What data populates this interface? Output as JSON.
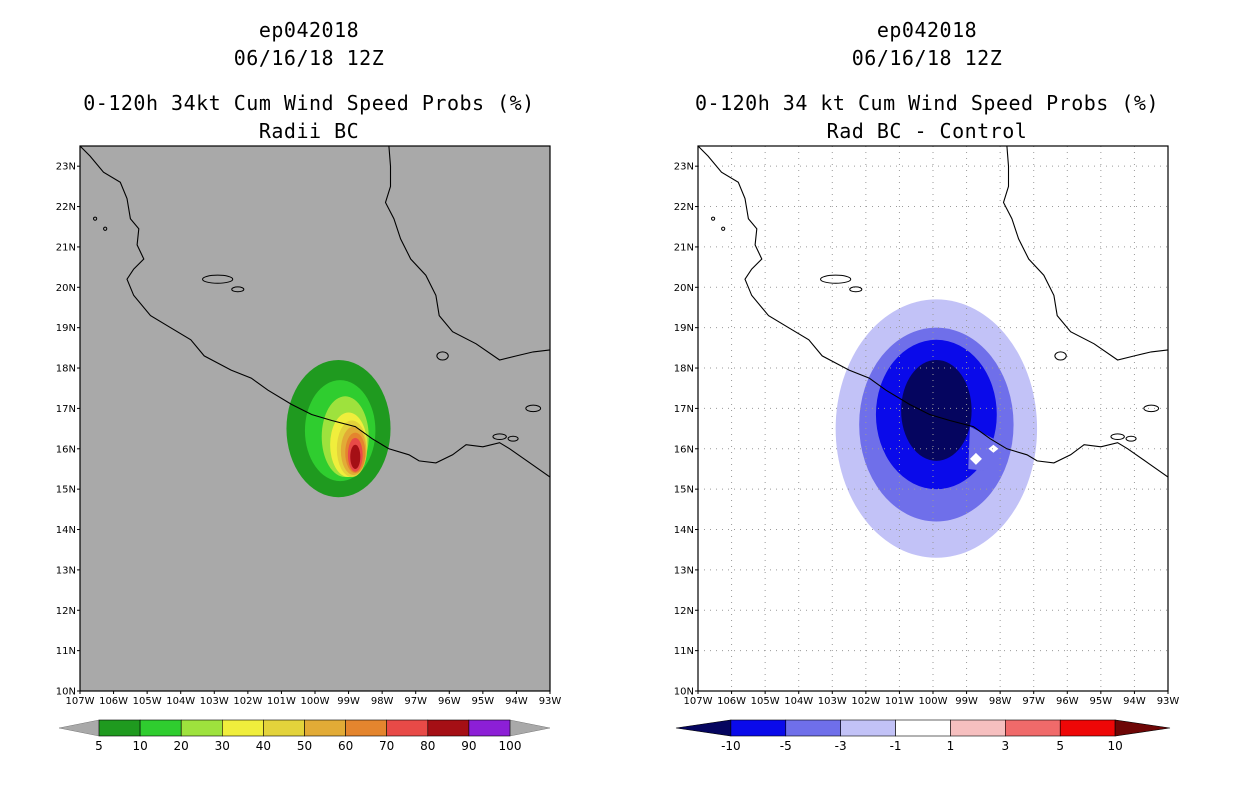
{
  "panels": [
    {
      "id": "left",
      "title_line1": "ep042018",
      "title_line2": "06/16/18 12Z",
      "title_line3": "0-120h 34kt Cum Wind Speed Probs (%)",
      "title_line4": "Radii BC",
      "background_color": "#a9a9a9",
      "gridlines": false,
      "colorbar": {
        "labels": [
          "5",
          "10",
          "20",
          "30",
          "40",
          "50",
          "60",
          "70",
          "80",
          "90",
          "100"
        ],
        "colors": [
          "#1f9a1f",
          "#2fcd2f",
          "#9ee23d",
          "#f0ee3c",
          "#e3d33b",
          "#e2ab36",
          "#e4852e",
          "#e84a47",
          "#a50f15",
          "#8c1fd6"
        ],
        "end_color": "#a9a9a9"
      }
    },
    {
      "id": "right",
      "title_line1": "ep042018",
      "title_line2": "06/16/18 12Z",
      "title_line3": "0-120h 34 kt Cum Wind Speed Probs (%)",
      "title_line4": "Rad BC - Control",
      "background_color": "#ffffff",
      "gridlines": true,
      "colorbar": {
        "labels": [
          "-10",
          "-5",
          "-3",
          "-1",
          "1",
          "3",
          "5",
          "10"
        ],
        "colors": [
          "#05055f",
          "#0a0aea",
          "#6f6fea",
          "#c2c2f7",
          "#ffffff",
          "#f6bfbf",
          "#f06a6a",
          "#ee0707",
          "#6e0606"
        ]
      }
    }
  ],
  "axes": {
    "lat_labels": [
      "10N",
      "11N",
      "12N",
      "13N",
      "14N",
      "15N",
      "16N",
      "17N",
      "18N",
      "19N",
      "20N",
      "21N",
      "22N",
      "23N"
    ],
    "lon_labels": [
      "107W",
      "106W",
      "105W",
      "104W",
      "103W",
      "102W",
      "101W",
      "100W",
      "99W",
      "98W",
      "97W",
      "96W",
      "95W",
      "94W",
      "93W"
    ],
    "lat_range": [
      10,
      23.5
    ],
    "lon_range": [
      -107,
      -93
    ]
  },
  "fields": {
    "left_probability": [
      {
        "level": 5,
        "color": "#1f9a1f",
        "center": [
          -99.3,
          16.5
        ],
        "radii_deg": [
          1.55,
          1.7
        ]
      },
      {
        "level": 10,
        "color": "#2fcd2f",
        "center": [
          -99.25,
          16.45
        ],
        "radii_deg": [
          1.05,
          1.25
        ]
      },
      {
        "level": 20,
        "color": "#9ee23d",
        "center": [
          -99.1,
          16.3
        ],
        "radii_deg": [
          0.7,
          1.0
        ]
      },
      {
        "level": 30,
        "color": "#f0ee3c",
        "center": [
          -99.0,
          16.1
        ],
        "radii_deg": [
          0.55,
          0.8
        ]
      },
      {
        "level": 40,
        "color": "#e3d33b",
        "center": [
          -98.9,
          16.0
        ],
        "radii_deg": [
          0.45,
          0.7
        ]
      },
      {
        "level": 50,
        "color": "#e2ab36",
        "center": [
          -98.85,
          15.95
        ],
        "radii_deg": [
          0.38,
          0.6
        ]
      },
      {
        "level": 60,
        "color": "#e4852e",
        "center": [
          -98.8,
          15.9
        ],
        "radii_deg": [
          0.3,
          0.5
        ]
      },
      {
        "level": 70,
        "color": "#e84a47",
        "center": [
          -98.8,
          15.85
        ],
        "radii_deg": [
          0.22,
          0.42
        ]
      },
      {
        "level": 80,
        "color": "#a50f15",
        "center": [
          -98.8,
          15.8
        ],
        "radii_deg": [
          0.15,
          0.3
        ]
      }
    ],
    "right_difference": [
      {
        "level": -1,
        "color": "#c2c2f7",
        "center": [
          -99.9,
          16.5
        ],
        "radii_deg": [
          3.0,
          3.2
        ]
      },
      {
        "level": -3,
        "color": "#6f6fea",
        "center": [
          -99.9,
          16.6
        ],
        "radii_deg": [
          2.3,
          2.4
        ]
      },
      {
        "level": -5,
        "color": "#0a0aea",
        "center": [
          -99.9,
          16.85
        ],
        "radii_deg": [
          1.8,
          1.85
        ]
      },
      {
        "level": -10,
        "color": "#05055f",
        "center": [
          -99.9,
          16.95
        ],
        "radii_deg": [
          1.05,
          1.25
        ]
      }
    ]
  }
}
